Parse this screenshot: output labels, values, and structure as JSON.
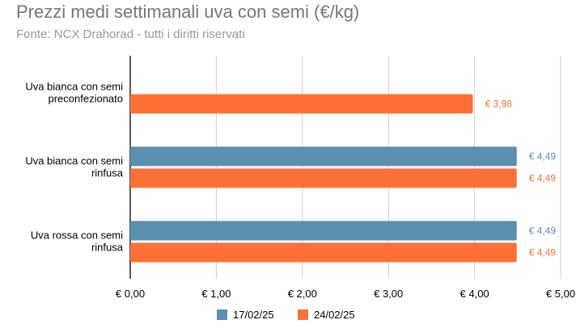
{
  "header": {
    "title": "Prezzi medi settimanali uva con semi (€/kg)",
    "subtitle": "Fonte: NCX Drahorad - tutti i diritti riservati"
  },
  "chart_data": {
    "type": "bar",
    "orientation": "horizontal",
    "title": "Prezzi medi settimanali uva con semi (€/kg)",
    "subtitle": "Fonte: NCX Drahorad - tutti i diritti riservati",
    "categories": [
      [
        "Uva bianca con semi",
        "preconfezionato"
      ],
      [
        "Uva bianca con semi",
        "rinfusa"
      ],
      [
        "Uva rossa con semi",
        "rinfusa"
      ]
    ],
    "series": [
      {
        "name": "17/02/25",
        "color": "#5b8fb0",
        "values": [
          null,
          4.49,
          4.49
        ],
        "labels": [
          null,
          "€ 4,49",
          "€ 4,49"
        ]
      },
      {
        "name": "24/02/25",
        "color": "#ff7036",
        "values": [
          3.98,
          4.49,
          4.49
        ],
        "labels": [
          "€ 3,98",
          "€ 4,49",
          "€ 4,49"
        ]
      }
    ],
    "xlim": [
      0,
      5
    ],
    "xticks": [
      0,
      1,
      2,
      3,
      4,
      5
    ],
    "xtick_labels": [
      "€ 0,00",
      "€ 1,00",
      "€ 2,00",
      "€ 3,00",
      "€ 4,00",
      "€ 5,00"
    ],
    "grid": true,
    "legend": "bottom"
  }
}
